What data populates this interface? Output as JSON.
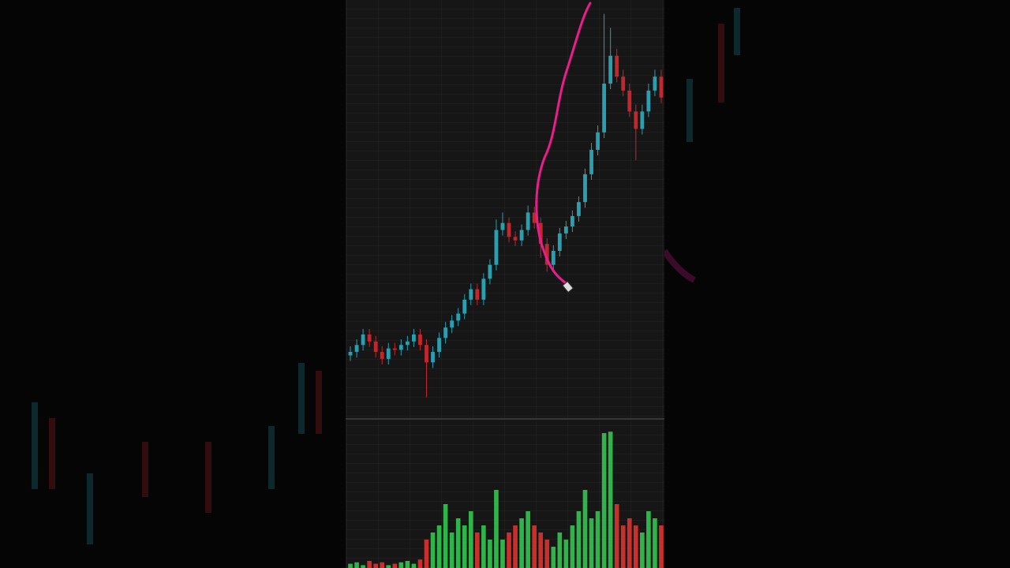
{
  "chart_data": {
    "type": "candlestick",
    "open": [
      99,
      99.5,
      100.5,
      102,
      101,
      99.5,
      98.5,
      100,
      99.8,
      100.5,
      101,
      102,
      100.5,
      98,
      99.5,
      101.5,
      103,
      104,
      105,
      107,
      108.5,
      107,
      110,
      112,
      117,
      118,
      116,
      115.5,
      117,
      119.5,
      118,
      115,
      112,
      114,
      116.5,
      117.5,
      119,
      121,
      125,
      128.5,
      131,
      138,
      142,
      139,
      137,
      134,
      131.5,
      134,
      137,
      139
    ],
    "high": [
      100.3,
      101.3,
      102.8,
      102.8,
      101.8,
      100.3,
      100.8,
      100.8,
      101.3,
      101.8,
      102.8,
      102.8,
      101.3,
      100.3,
      102.3,
      103.8,
      104.8,
      105.8,
      107.8,
      109.3,
      109.3,
      110.8,
      112.8,
      118.5,
      119.5,
      118.8,
      116.8,
      117.8,
      120.5,
      120.3,
      118.8,
      115.8,
      114.8,
      117.3,
      118.3,
      119.8,
      121.8,
      125.8,
      129.5,
      132,
      148,
      146,
      143,
      140,
      138,
      135,
      135,
      138,
      140,
      140
    ],
    "low": [
      98.2,
      98.7,
      99.7,
      100.2,
      98.7,
      97.7,
      97.7,
      99,
      99,
      99.7,
      100.2,
      99.7,
      93,
      97.2,
      98.7,
      100.7,
      102.2,
      103.2,
      104.2,
      106.2,
      106.2,
      106.2,
      109.2,
      111.2,
      116.2,
      115.2,
      114.7,
      114.7,
      116.2,
      117.2,
      113,
      111,
      111.2,
      113.2,
      115.7,
      116.7,
      118.2,
      120.2,
      124.2,
      127.7,
      130.2,
      137.2,
      138.2,
      136.2,
      133.2,
      127,
      130.7,
      133.2,
      136.2,
      135.2
    ],
    "close": [
      99.5,
      100.5,
      102,
      101,
      99.5,
      98.5,
      100,
      99.8,
      100.5,
      101,
      102,
      100.5,
      98,
      99.5,
      101.5,
      103,
      104,
      105,
      107,
      108.5,
      107,
      110,
      112,
      117,
      118,
      116,
      115.5,
      117,
      119.5,
      118,
      115,
      112,
      114,
      116.5,
      117.5,
      119,
      121,
      125,
      128.5,
      131,
      138,
      142,
      139,
      137,
      134,
      131.5,
      134,
      137,
      139,
      136
    ],
    "volume": [
      3,
      4,
      2,
      5,
      3,
      4,
      2,
      3,
      4,
      5,
      3,
      6,
      20,
      25,
      30,
      45,
      25,
      35,
      30,
      40,
      25,
      30,
      20,
      55,
      20,
      25,
      30,
      35,
      40,
      30,
      25,
      20,
      15,
      25,
      20,
      30,
      40,
      55,
      35,
      40,
      95,
      96,
      45,
      30,
      35,
      30,
      25,
      40,
      35,
      30
    ],
    "ylim": [
      90,
      150
    ],
    "volume_ylim": [
      0,
      100
    ],
    "up_color": "#2a9fb0",
    "down_color": "#c1272d",
    "volume_up_color": "#2fb44a",
    "volume_down_color": "#c9302c"
  }
}
